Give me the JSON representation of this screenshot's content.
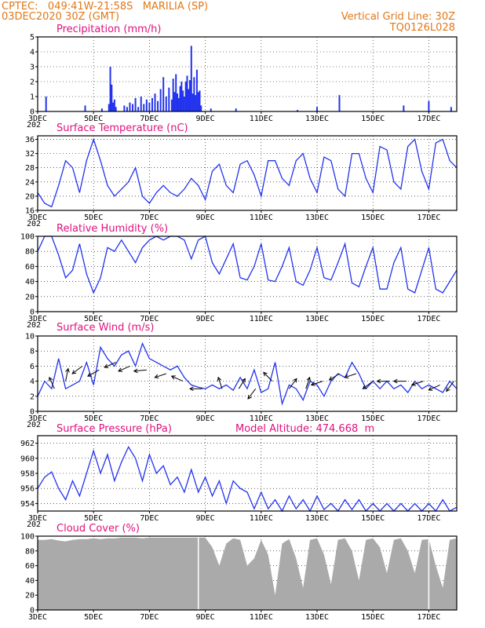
{
  "header": {
    "left_line1": "CPTEC:   049:41W-21:58S   MARILIA (SP)",
    "left_line2": "03DEC2020 30Z (GMT)",
    "right_line1": "Vertical Grid Line: 30Z",
    "right_line2": "TQ0126L028",
    "model_altitude": "Model Altitude: 474.668  m"
  },
  "colors": {
    "header": "#e07818",
    "title": "#e0107e",
    "series": "#2233ee",
    "cloud": "#aaaaaa"
  },
  "x_axis": {
    "tick_labels": [
      "3DEC",
      "5DEC",
      "7DEC",
      "9DEC",
      "11DEC",
      "13DEC",
      "15DEC",
      "17DEC"
    ],
    "start_day": 3,
    "end_day": 18,
    "year_mark": "202"
  },
  "chart_data": [
    {
      "id": "precip",
      "type": "bar",
      "title": "Precipitation (mm/h)",
      "ylim": [
        0,
        5
      ],
      "yticks": [
        0,
        1,
        2,
        3,
        4,
        5
      ],
      "x": [
        3.3,
        4.7,
        5.3,
        5.55,
        5.6,
        5.65,
        5.7,
        5.75,
        5.8,
        6.1,
        6.2,
        6.3,
        6.4,
        6.5,
        6.6,
        6.7,
        6.8,
        6.9,
        7.0,
        7.1,
        7.2,
        7.3,
        7.4,
        7.5,
        7.6,
        7.7,
        7.8,
        7.85,
        7.9,
        7.95,
        8.0,
        8.05,
        8.1,
        8.15,
        8.2,
        8.25,
        8.3,
        8.35,
        8.4,
        8.45,
        8.5,
        8.55,
        8.6,
        8.65,
        8.7,
        8.75,
        8.8,
        8.85,
        9.2,
        10.1,
        12.3,
        13.0,
        13.8,
        16.1,
        17.0,
        17.8
      ],
      "values": [
        1.0,
        0.4,
        0.2,
        0.5,
        3.0,
        1.8,
        0.6,
        0.8,
        0.3,
        0.4,
        0.3,
        0.6,
        0.5,
        0.9,
        0.3,
        1.0,
        0.5,
        0.8,
        0.6,
        0.9,
        1.2,
        0.7,
        1.5,
        2.3,
        1.0,
        1.6,
        0.8,
        2.2,
        1.3,
        2.5,
        1.2,
        0.9,
        1.7,
        2.0,
        1.4,
        1.0,
        2.0,
        2.4,
        1.5,
        2.1,
        4.4,
        1.2,
        2.3,
        1.1,
        2.8,
        1.3,
        1.4,
        0.4,
        0.2,
        0.2,
        0.1,
        0.3,
        1.1,
        0.4,
        0.7,
        0.3
      ]
    },
    {
      "id": "temp",
      "type": "line",
      "title": "Surface Temperature (nC)",
      "ylim": [
        16,
        37
      ],
      "yticks": [
        16,
        20,
        24,
        28,
        32,
        36
      ],
      "x": [
        3.0,
        3.25,
        3.5,
        3.75,
        4.0,
        4.25,
        4.5,
        4.75,
        5.0,
        5.25,
        5.5,
        5.75,
        6.0,
        6.25,
        6.5,
        6.75,
        7.0,
        7.25,
        7.5,
        7.75,
        8.0,
        8.25,
        8.5,
        8.75,
        9.0,
        9.25,
        9.5,
        9.75,
        10.0,
        10.25,
        10.5,
        10.75,
        11.0,
        11.25,
        11.5,
        11.75,
        12.0,
        12.25,
        12.5,
        12.75,
        13.0,
        13.25,
        13.5,
        13.75,
        14.0,
        14.25,
        14.5,
        14.75,
        15.0,
        15.25,
        15.5,
        15.75,
        16.0,
        16.25,
        16.5,
        16.75,
        17.0,
        17.25,
        17.5,
        17.75,
        18.0
      ],
      "values": [
        21,
        18,
        17,
        23,
        30,
        28,
        21,
        30,
        36,
        30,
        23,
        20,
        22,
        24,
        28,
        20,
        18,
        21,
        23,
        21,
        20,
        22,
        25,
        23,
        19,
        27,
        29,
        23,
        21,
        29,
        30,
        26,
        20,
        30,
        30,
        25,
        23,
        30,
        32,
        25,
        21,
        31,
        30,
        22,
        20,
        32,
        32,
        25,
        21,
        34,
        33,
        24,
        22,
        34,
        36,
        27,
        22,
        35,
        36,
        30,
        28
      ]
    },
    {
      "id": "rh",
      "type": "line",
      "title": "Relative Humidity (%)",
      "ylim": [
        0,
        100
      ],
      "yticks": [
        0,
        20,
        40,
        60,
        80,
        100
      ],
      "x": [
        3.0,
        3.25,
        3.5,
        3.75,
        4.0,
        4.25,
        4.5,
        4.75,
        5.0,
        5.25,
        5.5,
        5.75,
        6.0,
        6.25,
        6.5,
        6.75,
        7.0,
        7.25,
        7.5,
        7.75,
        8.0,
        8.25,
        8.5,
        8.75,
        9.0,
        9.25,
        9.5,
        9.75,
        10.0,
        10.25,
        10.5,
        10.75,
        11.0,
        11.25,
        11.5,
        11.75,
        12.0,
        12.25,
        12.5,
        12.75,
        13.0,
        13.25,
        13.5,
        13.75,
        14.0,
        14.25,
        14.5,
        14.75,
        15.0,
        15.25,
        15.5,
        15.75,
        16.0,
        16.25,
        16.5,
        16.75,
        17.0,
        17.25,
        17.5,
        17.75,
        18.0
      ],
      "values": [
        80,
        100,
        100,
        75,
        45,
        55,
        90,
        50,
        25,
        45,
        85,
        80,
        95,
        80,
        65,
        85,
        95,
        100,
        95,
        100,
        100,
        95,
        70,
        95,
        100,
        65,
        50,
        70,
        90,
        45,
        42,
        60,
        90,
        42,
        40,
        60,
        85,
        40,
        35,
        55,
        85,
        45,
        42,
        65,
        90,
        38,
        33,
        60,
        85,
        30,
        30,
        65,
        85,
        30,
        25,
        55,
        85,
        30,
        25,
        40,
        55
      ]
    },
    {
      "id": "wind",
      "type": "line",
      "title": "Surface Wind (m/s)",
      "ylim": [
        0,
        10
      ],
      "yticks": [
        0,
        2,
        4,
        6,
        8,
        10
      ],
      "x": [
        3.0,
        3.25,
        3.5,
        3.75,
        4.0,
        4.25,
        4.5,
        4.75,
        5.0,
        5.25,
        5.5,
        5.75,
        6.0,
        6.25,
        6.5,
        6.75,
        7.0,
        7.25,
        7.5,
        7.75,
        8.0,
        8.25,
        8.5,
        8.75,
        9.0,
        9.25,
        9.5,
        9.75,
        10.0,
        10.25,
        10.5,
        10.75,
        11.0,
        11.25,
        11.5,
        11.75,
        12.0,
        12.25,
        12.5,
        12.75,
        13.0,
        13.25,
        13.5,
        13.75,
        14.0,
        14.25,
        14.5,
        14.75,
        15.0,
        15.25,
        15.5,
        15.75,
        16.0,
        16.25,
        16.5,
        16.75,
        17.0,
        17.25,
        17.5,
        17.75,
        18.0
      ],
      "values": [
        2.0,
        4.0,
        3.0,
        7.0,
        3.0,
        3.5,
        4.0,
        6.5,
        3.5,
        8.5,
        7.0,
        6.0,
        7.5,
        8.0,
        6.0,
        9.0,
        7.0,
        6.5,
        6.0,
        5.5,
        6.0,
        4.5,
        3.5,
        3.2,
        3.0,
        3.5,
        3.0,
        3.5,
        2.8,
        4.5,
        3.0,
        5.5,
        2.5,
        3.0,
        6.5,
        1.0,
        3.5,
        3.0,
        1.5,
        4.0,
        3.5,
        2.0,
        4.0,
        5.0,
        4.5,
        6.5,
        5.0,
        3.0,
        4.0,
        3.0,
        4.0,
        3.0,
        3.5,
        2.5,
        4.0,
        3.0,
        3.5,
        3.0,
        2.5,
        4.0,
        3.0
      ],
      "arrows": [
        {
          "day": 3.6,
          "speed": 3.0,
          "dx": -0.4,
          "dy": -0.9
        },
        {
          "day": 4.0,
          "speed": 4.0,
          "dx": 0.2,
          "dy": -1.0
        },
        {
          "day": 4.6,
          "speed": 6.0,
          "dx": -0.8,
          "dy": 0.6
        },
        {
          "day": 5.2,
          "speed": 5.5,
          "dx": -0.9,
          "dy": 0.5
        },
        {
          "day": 5.8,
          "speed": 6.5,
          "dx": -0.9,
          "dy": 0.4
        },
        {
          "day": 6.3,
          "speed": 6.0,
          "dx": -0.9,
          "dy": 0.4
        },
        {
          "day": 6.9,
          "speed": 5.5,
          "dx": -1.0,
          "dy": 0.1
        },
        {
          "day": 7.6,
          "speed": 5.0,
          "dx": -0.9,
          "dy": 0.3
        },
        {
          "day": 8.2,
          "speed": 4.0,
          "dx": -0.9,
          "dy": -0.4
        },
        {
          "day": 8.9,
          "speed": 3.0,
          "dx": -1.0,
          "dy": 0.0
        },
        {
          "day": 9.6,
          "speed": 3.0,
          "dx": -0.3,
          "dy": -0.9
        },
        {
          "day": 10.2,
          "speed": 3.0,
          "dx": 0.5,
          "dy": -0.8
        },
        {
          "day": 10.8,
          "speed": 3.0,
          "dx": -0.6,
          "dy": 0.8
        },
        {
          "day": 11.4,
          "speed": 4.0,
          "dx": -0.7,
          "dy": -0.7
        },
        {
          "day": 12.0,
          "speed": 3.0,
          "dx": 0.6,
          "dy": -0.8
        },
        {
          "day": 12.6,
          "speed": 3.0,
          "dx": 0.3,
          "dy": -0.9
        },
        {
          "day": 13.2,
          "speed": 4.0,
          "dx": -0.9,
          "dy": 0.3
        },
        {
          "day": 13.8,
          "speed": 5.0,
          "dx": -0.8,
          "dy": 0.5
        },
        {
          "day": 14.4,
          "speed": 5.0,
          "dx": -0.9,
          "dy": 0.3
        },
        {
          "day": 15.0,
          "speed": 4.0,
          "dx": -0.8,
          "dy": 0.6
        },
        {
          "day": 15.6,
          "speed": 4.0,
          "dx": -1.0,
          "dy": 0.0
        },
        {
          "day": 16.2,
          "speed": 4.0,
          "dx": -1.0,
          "dy": 0.0
        },
        {
          "day": 16.8,
          "speed": 4.0,
          "dx": -0.9,
          "dy": 0.3
        },
        {
          "day": 17.4,
          "speed": 3.5,
          "dx": -0.9,
          "dy": 0.4
        },
        {
          "day": 17.9,
          "speed": 4.0,
          "dx": -0.6,
          "dy": 0.8
        }
      ]
    },
    {
      "id": "pres",
      "type": "line",
      "title": "Surface Pressure (hPa)",
      "ylim": [
        953,
        963
      ],
      "yticks": [
        954,
        956,
        958,
        960,
        962
      ],
      "x": [
        3.0,
        3.25,
        3.5,
        3.75,
        4.0,
        4.25,
        4.5,
        4.75,
        5.0,
        5.25,
        5.5,
        5.75,
        6.0,
        6.25,
        6.5,
        6.75,
        7.0,
        7.25,
        7.5,
        7.75,
        8.0,
        8.25,
        8.5,
        8.75,
        9.0,
        9.25,
        9.5,
        9.75,
        10.0,
        10.25,
        10.5,
        10.75,
        11.0,
        11.25,
        11.5,
        11.75,
        12.0,
        12.25,
        12.5,
        12.75,
        13.0,
        13.25,
        13.5,
        13.75,
        14.0,
        14.25,
        14.5,
        14.75,
        15.0,
        15.25,
        15.5,
        15.75,
        16.0,
        16.25,
        16.5,
        16.75,
        17.0,
        17.25,
        17.5,
        17.75,
        18.0
      ],
      "values": [
        956,
        957.5,
        958.2,
        956,
        954.5,
        957,
        955,
        958,
        961,
        958,
        960.5,
        957,
        959.5,
        961.5,
        960,
        957,
        960.5,
        958,
        959,
        956.5,
        957.5,
        955.5,
        958.5,
        955.5,
        957.5,
        955,
        957,
        954,
        957,
        956,
        955.5,
        953.3,
        955.5,
        953.3,
        954.5,
        953.0,
        955,
        953.3,
        954.5,
        953.0,
        955,
        953.2,
        954,
        953.0,
        954.5,
        953.2,
        954.5,
        953.0,
        954,
        953.0,
        954,
        953.0,
        954,
        953.0,
        954,
        953.0,
        954,
        953.0,
        954.5,
        953.0,
        953.5
      ]
    },
    {
      "id": "cloud",
      "type": "area",
      "title": "Cloud Cover (%)",
      "ylim": [
        0,
        100
      ],
      "yticks": [
        0,
        20,
        40,
        60,
        80,
        100
      ],
      "x": [
        3.0,
        3.25,
        3.5,
        3.75,
        4.0,
        4.25,
        4.5,
        4.75,
        5.0,
        5.25,
        5.5,
        5.75,
        6.0,
        6.25,
        6.5,
        6.75,
        7.0,
        7.25,
        7.5,
        7.75,
        8.0,
        8.25,
        8.5,
        8.75,
        9.0,
        9.25,
        9.5,
        9.75,
        10.0,
        10.25,
        10.5,
        10.75,
        11.0,
        11.25,
        11.5,
        11.75,
        12.0,
        12.25,
        12.5,
        12.75,
        13.0,
        13.25,
        13.5,
        13.75,
        14.0,
        14.25,
        14.5,
        14.75,
        15.0,
        15.25,
        15.5,
        15.75,
        16.0,
        16.25,
        16.5,
        16.75,
        17.0,
        17.25,
        17.5,
        17.75,
        18.0
      ],
      "values": [
        95,
        95,
        96,
        94,
        93,
        95,
        96,
        96,
        97,
        96,
        97,
        97,
        98,
        98,
        98,
        97,
        98,
        98,
        98,
        98,
        98,
        98,
        98,
        98,
        98,
        85,
        60,
        90,
        97,
        95,
        60,
        70,
        95,
        75,
        20,
        90,
        96,
        70,
        30,
        95,
        97,
        75,
        35,
        95,
        97,
        80,
        40,
        95,
        97,
        85,
        50,
        95,
        97,
        80,
        50,
        95,
        96,
        60,
        30,
        95,
        97
      ]
    }
  ]
}
